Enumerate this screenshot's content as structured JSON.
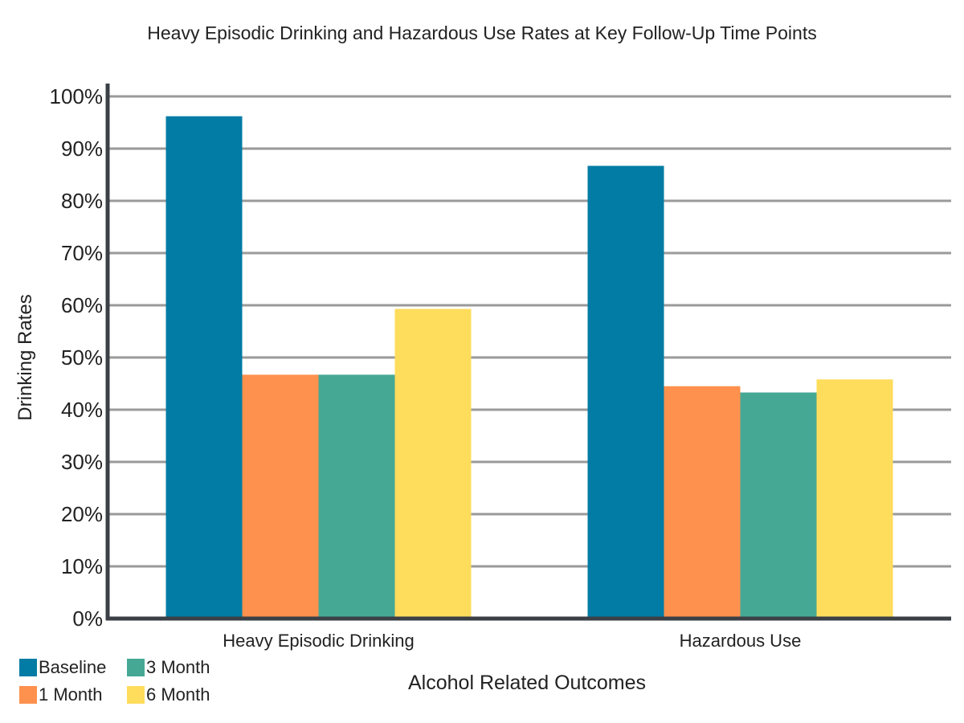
{
  "chart_data": {
    "type": "bar",
    "title": "Heavy Episodic Drinking and Hazardous Use Rates at Key Follow-Up Time Points",
    "xlabel": "Alcohol Related Outcomes",
    "ylabel": "Drinking Rates",
    "categories": [
      "Heavy Episodic Drinking",
      "Hazardous Use"
    ],
    "series": [
      {
        "name": "Baseline",
        "values": [
          96.2,
          86.7
        ],
        "color": "#027CA5"
      },
      {
        "name": "1 Month",
        "values": [
          46.7,
          44.5
        ],
        "color": "#FE914D"
      },
      {
        "name": "3 Month",
        "values": [
          46.7,
          43.3
        ],
        "color": "#45A895"
      },
      {
        "name": "6 Month",
        "values": [
          59.3,
          45.8
        ],
        "color": "#FEDC5C"
      }
    ],
    "ylim": [
      0,
      100
    ],
    "yticks": [
      "0%",
      "10%",
      "20%",
      "30%",
      "40%",
      "50%",
      "60%",
      "70%",
      "80%",
      "90%",
      "100%"
    ],
    "grid": true,
    "legend_position": "bottom-left"
  }
}
